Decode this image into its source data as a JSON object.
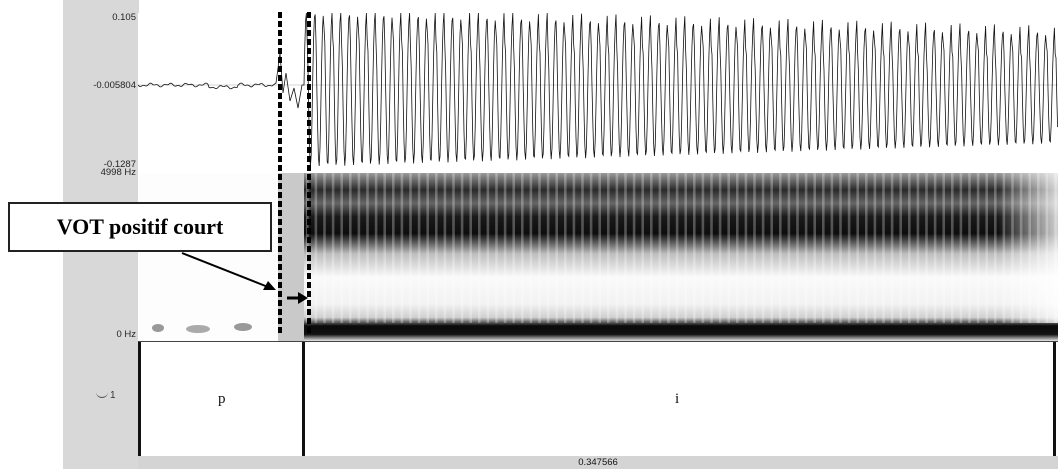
{
  "waveform": {
    "y_max_label": "0.105",
    "y_mid_label": "-0.005804",
    "y_min_label": "-0.1287"
  },
  "spectrogram": {
    "freq_max_label": "4998 Hz",
    "freq_min_label": "0 Hz"
  },
  "tier": {
    "number_label": "1",
    "segments": [
      {
        "label": "p"
      },
      {
        "label": "i"
      }
    ]
  },
  "footer": {
    "duration_label": "0.347566"
  },
  "annotation": {
    "callout_text": "VOT positif court"
  }
}
